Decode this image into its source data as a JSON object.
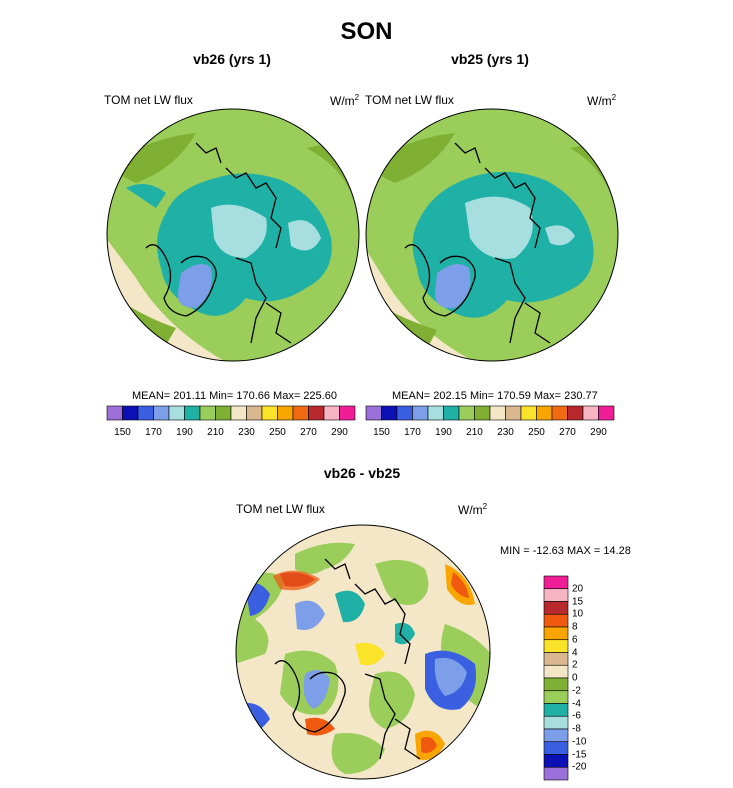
{
  "figure": {
    "title": "SON"
  },
  "panels": [
    {
      "title": "vb26 (yrs 1)",
      "left_label": "TOM net LW flux",
      "right_label": "W/m",
      "unit_exp": "2",
      "stats": "MEAN= 201.11  Min= 170.66  Max= 225.60"
    },
    {
      "title": "vb25 (yrs 1)",
      "left_label": "TOM net LW flux",
      "right_label": "W/m",
      "unit_exp": "2",
      "stats": "MEAN= 202.15  Min= 170.59  Max= 230.77"
    },
    {
      "title": "vb26 - vb25",
      "left_label": "TOM net LW flux",
      "right_label": "W/m",
      "unit_exp": "2",
      "stats": "MIN = -12.63 MAX =  14.28"
    }
  ],
  "colorbar_abs": {
    "colors": [
      "#9b6fd9",
      "#0b0fb4",
      "#3a5fe0",
      "#7d9ee8",
      "#a7dfe0",
      "#1fb0a6",
      "#9acd5a",
      "#7fb033",
      "#f3e7c7",
      "#d9b88f",
      "#fbe32a",
      "#f9a500",
      "#f06a12",
      "#b8292d",
      "#f7b5c3",
      "#f01e96"
    ],
    "tick_labels": [
      "150",
      "170",
      "190",
      "210",
      "230",
      "250",
      "270",
      "290"
    ]
  },
  "colorbar_diff": {
    "colors": [
      "#f01e96",
      "#f7b5c3",
      "#b8292d",
      "#f05a10",
      "#f9a500",
      "#fbe32a",
      "#d9b88f",
      "#f3e7c7",
      "#7fb033",
      "#9acd5a",
      "#1fb0a6",
      "#a7dfe0",
      "#7d9ee8",
      "#3a5fe0",
      "#0b0fb4",
      "#9b6fd9"
    ],
    "tick_labels": [
      "20",
      "15",
      "10",
      "8",
      "6",
      "4",
      "2",
      "0",
      "-2",
      "-4",
      "-6",
      "-8",
      "-10",
      "-15",
      "-20"
    ]
  }
}
